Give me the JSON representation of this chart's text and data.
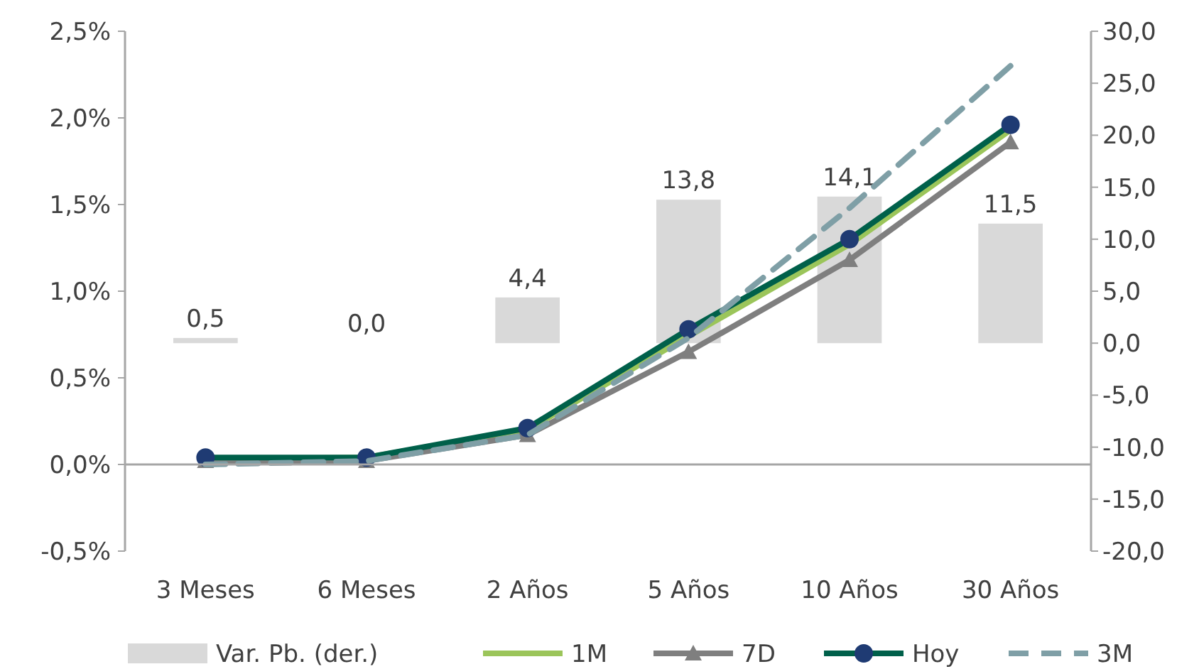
{
  "chart_data": {
    "type": "line",
    "categories": [
      "3 Meses",
      "6 Meses",
      "2 Años",
      "5 Años",
      "10 Años",
      "30 Años"
    ],
    "series": [
      {
        "name": "Var. Pb. (der.)",
        "type": "bar",
        "axis": "y2",
        "color": "#d9d9d9",
        "values": [
          0.5,
          0.0,
          4.4,
          13.8,
          14.1,
          11.5
        ],
        "value_labels": [
          "0,5",
          "0,0",
          "4,4",
          "13,8",
          "14,1",
          "11,5"
        ]
      },
      {
        "name": "1M",
        "color": "#9bc55a",
        "values": [
          0.03,
          0.04,
          0.2,
          0.74,
          1.27,
          1.93
        ],
        "marker": "none"
      },
      {
        "name": "7D",
        "color": "#7f7f7f",
        "values": [
          0.02,
          0.02,
          0.17,
          0.65,
          1.18,
          1.86
        ],
        "marker": "triangle"
      },
      {
        "name": "Hoy",
        "color": "#00604a",
        "values": [
          0.04,
          0.04,
          0.21,
          0.78,
          1.3,
          1.96
        ],
        "marker": "circle"
      },
      {
        "name": "3M",
        "color": "#7f9fa6",
        "values": [
          0.0,
          0.02,
          0.17,
          0.73,
          1.48,
          2.3
        ],
        "marker": "none",
        "line_style": "dashed"
      }
    ],
    "ylim": [
      -0.5,
      2.5
    ],
    "yticks": [
      {
        "value": -0.5,
        "label": "-0,5%"
      },
      {
        "value": 0,
        "label": "0,0%"
      },
      {
        "value": 0.5,
        "label": "0,5%"
      },
      {
        "value": 1,
        "label": "1,0%"
      },
      {
        "value": 1.5,
        "label": "1,5%"
      },
      {
        "value": 2,
        "label": "2,0%"
      },
      {
        "value": 2.5,
        "label": "2,5%"
      }
    ],
    "y2lim": [
      -20,
      30
    ],
    "y2ticks": [
      {
        "value": -20,
        "label": "-20,0"
      },
      {
        "value": -15,
        "label": "-15,0"
      },
      {
        "value": -10,
        "label": "-10,0"
      },
      {
        "value": -5,
        "label": "-5,0"
      },
      {
        "value": 0,
        "label": "0,0"
      },
      {
        "value": 5,
        "label": "5,0"
      },
      {
        "value": 10,
        "label": "10,0"
      },
      {
        "value": 15,
        "label": "15,0"
      },
      {
        "value": 20,
        "label": "20,0"
      },
      {
        "value": 25,
        "label": "25,0"
      },
      {
        "value": 30,
        "label": "30,0"
      }
    ],
    "legend": "bottom"
  }
}
